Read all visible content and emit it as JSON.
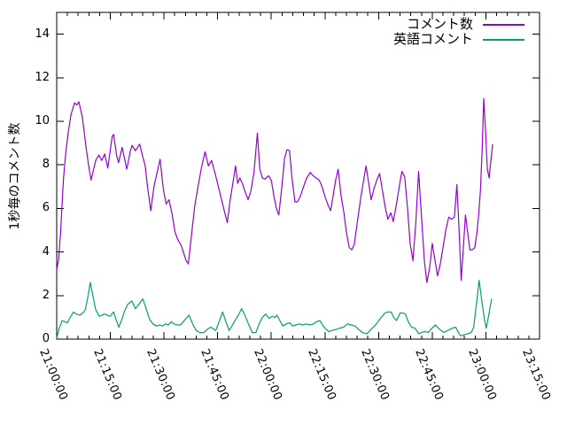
{
  "chart_data": {
    "type": "line",
    "title": "",
    "xlabel": "",
    "ylabel": "1秒毎のコメント数",
    "grid": false,
    "legend_position": "top-right-inside",
    "x_axis": {
      "unit": "time (HH:MM:SS)",
      "xlim_minutes": [
        0,
        135
      ],
      "start_label": "21:00:00",
      "tick_minutes": [
        0,
        15,
        30,
        45,
        60,
        75,
        90,
        105,
        120,
        135
      ],
      "tick_labels": [
        "21:00:00",
        "21:15:00",
        "21:30:00",
        "21:45:00",
        "22:00:00",
        "22:15:00",
        "22:30:00",
        "22:45:00",
        "23:00:00",
        "23:15:00"
      ],
      "minor_tick_interval_min": 3
    },
    "y_axis": {
      "ylim": [
        0,
        15
      ],
      "ticks": [
        0,
        2,
        4,
        6,
        8,
        10,
        12,
        14
      ]
    },
    "axis_color": "#000000",
    "series": [
      {
        "name": "コメント数",
        "color": "#9400D3",
        "points": [
          [
            0,
            3.2
          ],
          [
            0.5,
            3.6
          ],
          [
            1.1,
            4.9
          ],
          [
            1.5,
            6.2
          ],
          [
            1.9,
            7.4
          ],
          [
            2.5,
            8.5
          ],
          [
            3.1,
            9.35
          ],
          [
            4,
            10.3
          ],
          [
            5,
            10.85
          ],
          [
            5.6,
            10.75
          ],
          [
            6.2,
            10.9
          ],
          [
            7.2,
            10.15
          ],
          [
            8.1,
            8.95
          ],
          [
            8.9,
            8.0
          ],
          [
            9.6,
            7.3
          ],
          [
            10.9,
            8.2
          ],
          [
            11.8,
            8.45
          ],
          [
            12.6,
            8.2
          ],
          [
            13.4,
            8.5
          ],
          [
            14.3,
            7.85
          ],
          [
            15.5,
            9.3
          ],
          [
            15.9,
            9.4
          ],
          [
            16.8,
            8.4
          ],
          [
            17.3,
            8.1
          ],
          [
            18.3,
            8.8
          ],
          [
            19.6,
            7.8
          ],
          [
            20.6,
            8.65
          ],
          [
            21.1,
            8.9
          ],
          [
            22,
            8.65
          ],
          [
            23.2,
            8.95
          ],
          [
            24,
            8.4
          ],
          [
            24.7,
            8.0
          ],
          [
            25.4,
            7.0
          ],
          [
            26.3,
            5.9
          ],
          [
            27.2,
            7.0
          ],
          [
            28,
            7.6
          ],
          [
            28.9,
            8.25
          ],
          [
            29.8,
            6.9
          ],
          [
            30.6,
            6.2
          ],
          [
            31.4,
            6.4
          ],
          [
            32.3,
            5.7
          ],
          [
            33.1,
            4.9
          ],
          [
            33.9,
            4.55
          ],
          [
            34.8,
            4.3
          ],
          [
            35.6,
            3.9
          ],
          [
            36.2,
            3.6
          ],
          [
            36.8,
            3.45
          ],
          [
            37.7,
            4.8
          ],
          [
            38.6,
            6.1
          ],
          [
            39.5,
            7.0
          ],
          [
            40.5,
            7.9
          ],
          [
            41.5,
            8.6
          ],
          [
            42.4,
            7.95
          ],
          [
            43.3,
            8.2
          ],
          [
            44.3,
            7.6
          ],
          [
            45.2,
            7.0
          ],
          [
            46.1,
            6.4
          ],
          [
            47,
            5.8
          ],
          [
            47.7,
            5.35
          ],
          [
            48.5,
            6.4
          ],
          [
            49.3,
            7.2
          ],
          [
            50,
            7.95
          ],
          [
            50.6,
            7.15
          ],
          [
            51.2,
            7.4
          ],
          [
            51.9,
            7.15
          ],
          [
            52.7,
            6.75
          ],
          [
            53.5,
            6.4
          ],
          [
            54.3,
            6.8
          ],
          [
            55.2,
            7.7
          ],
          [
            56.1,
            9.45
          ],
          [
            56.8,
            7.8
          ],
          [
            57.5,
            7.4
          ],
          [
            58.3,
            7.35
          ],
          [
            59.2,
            7.5
          ],
          [
            60,
            7.3
          ],
          [
            60.8,
            6.5
          ],
          [
            61.5,
            5.95
          ],
          [
            62.1,
            5.7
          ],
          [
            62.9,
            6.9
          ],
          [
            63.7,
            8.3
          ],
          [
            64.4,
            8.7
          ],
          [
            65.1,
            8.65
          ],
          [
            65.8,
            7.4
          ],
          [
            66.6,
            6.3
          ],
          [
            67.3,
            6.3
          ],
          [
            68.1,
            6.55
          ],
          [
            69,
            7.0
          ],
          [
            69.9,
            7.4
          ],
          [
            70.9,
            7.65
          ],
          [
            71.7,
            7.5
          ],
          [
            72.5,
            7.4
          ],
          [
            73.4,
            7.3
          ],
          [
            74.2,
            7.0
          ],
          [
            75.1,
            6.5
          ],
          [
            76,
            6.1
          ],
          [
            76.6,
            5.9
          ],
          [
            77.3,
            6.6
          ],
          [
            78,
            7.3
          ],
          [
            78.7,
            7.8
          ],
          [
            79.5,
            6.6
          ],
          [
            80.3,
            5.8
          ],
          [
            81,
            4.9
          ],
          [
            81.8,
            4.2
          ],
          [
            82.5,
            4.1
          ],
          [
            83.2,
            4.35
          ],
          [
            84,
            5.3
          ],
          [
            85.1,
            6.6
          ],
          [
            86.5,
            7.95
          ],
          [
            87.3,
            7.1
          ],
          [
            87.9,
            6.4
          ],
          [
            88.7,
            6.9
          ],
          [
            89.5,
            7.3
          ],
          [
            90.3,
            7.6
          ],
          [
            91,
            6.9
          ],
          [
            91.8,
            6.1
          ],
          [
            92.6,
            5.5
          ],
          [
            93.4,
            5.8
          ],
          [
            94.1,
            5.4
          ],
          [
            95,
            6.2
          ],
          [
            95.8,
            7.0
          ],
          [
            96.5,
            7.7
          ],
          [
            97.3,
            7.45
          ],
          [
            98.1,
            6.0
          ],
          [
            98.8,
            4.4
          ],
          [
            99.6,
            3.6
          ],
          [
            100.4,
            5.3
          ],
          [
            101.2,
            7.7
          ],
          [
            102,
            5.6
          ],
          [
            102.8,
            3.6
          ],
          [
            103.5,
            2.6
          ],
          [
            104.3,
            3.3
          ],
          [
            105,
            4.4
          ],
          [
            105.7,
            3.7
          ],
          [
            106.5,
            2.9
          ],
          [
            107.3,
            3.5
          ],
          [
            108,
            4.2
          ],
          [
            108.8,
            5.0
          ],
          [
            109.6,
            5.6
          ],
          [
            110.4,
            5.5
          ],
          [
            111.2,
            5.6
          ],
          [
            111.9,
            7.1
          ],
          [
            112.5,
            5.0
          ],
          [
            113.1,
            2.7
          ],
          [
            113.7,
            4.2
          ],
          [
            114.3,
            5.7
          ],
          [
            114.9,
            4.9
          ],
          [
            115.5,
            4.1
          ],
          [
            116.2,
            4.1
          ],
          [
            116.9,
            4.2
          ],
          [
            117.5,
            4.9
          ],
          [
            118,
            5.75
          ],
          [
            118.5,
            6.9
          ],
          [
            119,
            8.9
          ],
          [
            119.4,
            11.05
          ],
          [
            119.9,
            9.6
          ],
          [
            120.4,
            7.8
          ],
          [
            120.9,
            7.4
          ],
          [
            121.4,
            8.2
          ],
          [
            121.9,
            8.95
          ]
        ]
      },
      {
        "name": "英語コメント",
        "color": "#009E73",
        "points": [
          [
            0,
            0.05
          ],
          [
            0.7,
            0.5
          ],
          [
            1.5,
            0.85
          ],
          [
            2.2,
            0.8
          ],
          [
            3,
            0.75
          ],
          [
            3.8,
            1.0
          ],
          [
            4.7,
            1.25
          ],
          [
            5.5,
            1.15
          ],
          [
            6.5,
            1.1
          ],
          [
            7.3,
            1.2
          ],
          [
            8,
            1.35
          ],
          [
            8.7,
            1.9
          ],
          [
            9.4,
            2.6
          ],
          [
            10.1,
            2.0
          ],
          [
            10.9,
            1.35
          ],
          [
            11.9,
            1.05
          ],
          [
            12.6,
            1.1
          ],
          [
            13.4,
            1.15
          ],
          [
            14.1,
            1.1
          ],
          [
            14.9,
            1.05
          ],
          [
            15.4,
            1.15
          ],
          [
            15.9,
            1.25
          ],
          [
            16.6,
            0.9
          ],
          [
            17.4,
            0.55
          ],
          [
            18.2,
            0.9
          ],
          [
            19,
            1.3
          ],
          [
            19.9,
            1.6
          ],
          [
            21,
            1.75
          ],
          [
            22,
            1.4
          ],
          [
            23,
            1.6
          ],
          [
            24.1,
            1.85
          ],
          [
            25,
            1.4
          ],
          [
            26,
            0.9
          ],
          [
            26.9,
            0.7
          ],
          [
            27.9,
            0.6
          ],
          [
            28.8,
            0.65
          ],
          [
            29.6,
            0.6
          ],
          [
            30.4,
            0.7
          ],
          [
            31.2,
            0.65
          ],
          [
            32,
            0.8
          ],
          [
            32.8,
            0.7
          ],
          [
            33.6,
            0.65
          ],
          [
            34.6,
            0.65
          ],
          [
            35.4,
            0.8
          ],
          [
            36.2,
            0.95
          ],
          [
            37,
            1.1
          ],
          [
            38,
            0.7
          ],
          [
            39,
            0.4
          ],
          [
            40,
            0.3
          ],
          [
            41.2,
            0.3
          ],
          [
            42.1,
            0.45
          ],
          [
            43.1,
            0.55
          ],
          [
            44.5,
            0.4
          ],
          [
            45.4,
            0.8
          ],
          [
            46.4,
            1.25
          ],
          [
            47.3,
            0.8
          ],
          [
            48.2,
            0.4
          ],
          [
            49,
            0.6
          ],
          [
            50,
            0.9
          ],
          [
            50.8,
            1.1
          ],
          [
            51.7,
            1.4
          ],
          [
            52.6,
            1.1
          ],
          [
            53.6,
            0.7
          ],
          [
            54.7,
            0.3
          ],
          [
            55.7,
            0.3
          ],
          [
            56.6,
            0.7
          ],
          [
            57.5,
            1.0
          ],
          [
            58.4,
            1.15
          ],
          [
            59.4,
            0.95
          ],
          [
            60.2,
            1.05
          ],
          [
            61,
            1.0
          ],
          [
            61.6,
            1.1
          ],
          [
            62.4,
            0.85
          ],
          [
            63.2,
            0.6
          ],
          [
            64.2,
            0.7
          ],
          [
            65.2,
            0.75
          ],
          [
            66,
            0.6
          ],
          [
            66.9,
            0.65
          ],
          [
            67.8,
            0.7
          ],
          [
            68.8,
            0.65
          ],
          [
            69.8,
            0.7
          ],
          [
            70.8,
            0.65
          ],
          [
            71.8,
            0.7
          ],
          [
            72.7,
            0.8
          ],
          [
            73.6,
            0.85
          ],
          [
            74.5,
            0.6
          ],
          [
            75.3,
            0.45
          ],
          [
            76.1,
            0.35
          ],
          [
            77.1,
            0.4
          ],
          [
            78.1,
            0.45
          ],
          [
            79.1,
            0.5
          ],
          [
            80.2,
            0.55
          ],
          [
            81.3,
            0.7
          ],
          [
            82.3,
            0.65
          ],
          [
            83.4,
            0.6
          ],
          [
            84.4,
            0.45
          ],
          [
            85.5,
            0.3
          ],
          [
            86.8,
            0.25
          ],
          [
            87.6,
            0.4
          ],
          [
            88.5,
            0.55
          ],
          [
            89.4,
            0.7
          ],
          [
            90.5,
            0.95
          ],
          [
            91.8,
            1.2
          ],
          [
            92.6,
            1.25
          ],
          [
            93.5,
            1.25
          ],
          [
            94.2,
            1.0
          ],
          [
            95,
            0.85
          ],
          [
            96,
            1.2
          ],
          [
            96.8,
            1.2
          ],
          [
            97.5,
            1.15
          ],
          [
            98.3,
            0.8
          ],
          [
            99.2,
            0.55
          ],
          [
            100.2,
            0.5
          ],
          [
            101.2,
            0.25
          ],
          [
            102,
            0.3
          ],
          [
            102.9,
            0.35
          ],
          [
            103.9,
            0.3
          ],
          [
            104.9,
            0.5
          ],
          [
            105.9,
            0.65
          ],
          [
            107,
            0.45
          ],
          [
            108.3,
            0.3
          ],
          [
            109.4,
            0.4
          ],
          [
            110.5,
            0.5
          ],
          [
            111.6,
            0.55
          ],
          [
            112.3,
            0.3
          ],
          [
            112.9,
            0.15
          ],
          [
            113.9,
            0.2
          ],
          [
            114.9,
            0.25
          ],
          [
            115.9,
            0.3
          ],
          [
            116.6,
            0.55
          ],
          [
            117.3,
            1.5
          ],
          [
            118.1,
            2.7
          ],
          [
            118.9,
            1.7
          ],
          [
            119.6,
            0.9
          ],
          [
            120.1,
            0.5
          ],
          [
            120.8,
            1.1
          ],
          [
            121.6,
            1.85
          ]
        ]
      }
    ]
  }
}
